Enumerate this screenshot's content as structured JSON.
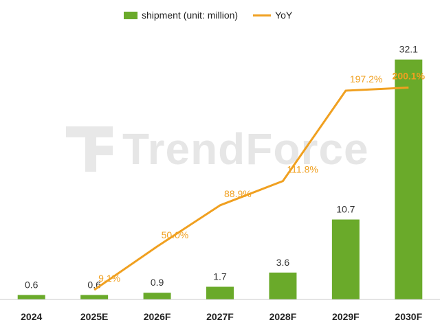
{
  "chart_data": {
    "type": "bar",
    "categories": [
      "2024",
      "2025E",
      "2026F",
      "2027F",
      "2028F",
      "2029F",
      "2030F"
    ],
    "series": [
      {
        "name": "shipment (unit: million)",
        "type": "bar",
        "values": [
          0.6,
          0.6,
          0.9,
          1.7,
          3.6,
          10.7,
          32.1
        ],
        "value_labels": [
          "0.6",
          "0.6",
          "0.9",
          "1.7",
          "3.6",
          "10.7",
          "32.1"
        ],
        "color": "#6aaa2a"
      },
      {
        "name": "YoY",
        "type": "line",
        "values": [
          null,
          9.1,
          50.0,
          88.9,
          111.8,
          197.2,
          200.1
        ],
        "value_labels": [
          "",
          "9.1%",
          "50.0%",
          "88.9%",
          "111.8%",
          "197.2%",
          "200.1%"
        ],
        "color": "#f0a020"
      }
    ],
    "ylim": [
      0,
      34
    ],
    "y2lim": [
      0,
      240
    ],
    "legend_position": "top-center",
    "grid": false
  },
  "watermark": "TrendForce"
}
